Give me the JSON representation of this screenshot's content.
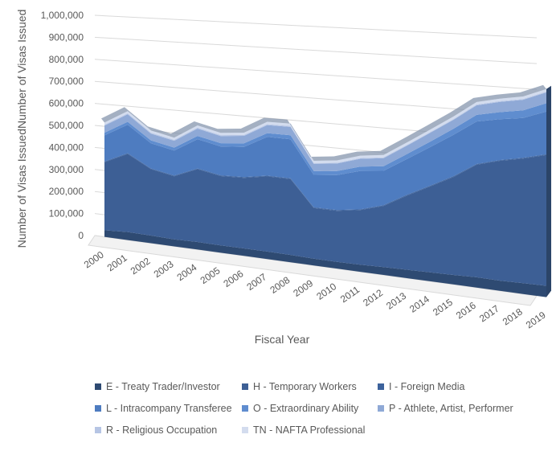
{
  "chart_data": {
    "type": "area",
    "stacked": true,
    "three_d": true,
    "title": "",
    "xlabel": "Fiscal Year",
    "ylabel": "Number of Visas IssuedNumber of Visas Issued",
    "ylim": [
      0,
      1000000
    ],
    "yticks": [
      "0",
      "100,000",
      "200,000",
      "300,000",
      "400,000",
      "500,000",
      "600,000",
      "700,000",
      "800,000",
      "900,000",
      "1,000,000"
    ],
    "categories": [
      "2000",
      "2001",
      "2002",
      "2003",
      "2004",
      "2005",
      "2006",
      "2007",
      "2008",
      "2009",
      "2010",
      "2011",
      "2012",
      "2013",
      "2014",
      "2015",
      "2016",
      "2017",
      "2018",
      "2019"
    ],
    "grid": true,
    "legend_position": "bottom",
    "series": [
      {
        "name": "E - Treaty Trader/Investor",
        "color": "#2e4a72",
        "values": [
          30000,
          36000,
          34000,
          31000,
          33000,
          32000,
          32000,
          32000,
          31000,
          28000,
          28000,
          29000,
          32000,
          34000,
          36000,
          38000,
          41000,
          40000,
          42000,
          44000
        ]
      },
      {
        "name": "H - Temporary Workers",
        "color": "#3d5f95",
        "values": [
          308000,
          350000,
          295000,
          278000,
          318000,
          300000,
          303000,
          320000,
          320000,
          212000,
          212000,
          225000,
          250000,
          300000,
          345000,
          390000,
          445000,
          470000,
          485000,
          505000
        ]
      },
      {
        "name": "I - Foreign Media",
        "color": "#3c629c",
        "values": [
          3000,
          3000,
          3000,
          3000,
          3000,
          3000,
          3000,
          3000,
          3000,
          3000,
          3000,
          3000,
          3000,
          3000,
          3000,
          3000,
          3000,
          3000,
          3000,
          3000
        ]
      },
      {
        "name": "L - Intracompany Transferee",
        "color": "#4e7cc0",
        "values": [
          118000,
          128000,
          112000,
          110000,
          128000,
          125000,
          130000,
          165000,
          165000,
          136000,
          145000,
          158000,
          140000,
          145000,
          155000,
          165000,
          168000,
          160000,
          155000,
          165000
        ]
      },
      {
        "name": "O - Extraordinary Ability",
        "color": "#5f8dcf",
        "values": [
          12000,
          13000,
          13000,
          13000,
          14000,
          14000,
          15000,
          16000,
          17000,
          16000,
          17000,
          18000,
          19000,
          20000,
          22000,
          24000,
          26000,
          28000,
          30000,
          32000
        ]
      },
      {
        "name": "P - Athlete, Artist, Performer",
        "color": "#8fa9d6",
        "values": [
          32000,
          34000,
          30000,
          30000,
          32000,
          31000,
          32000,
          34000,
          35000,
          30000,
          31000,
          32000,
          33000,
          34000,
          35000,
          36000,
          38000,
          40000,
          41000,
          42000
        ]
      },
      {
        "name": "R - Religious Occupation",
        "color": "#b6c5e4",
        "values": [
          4000,
          4000,
          4000,
          4000,
          4000,
          4000,
          4000,
          4000,
          4000,
          3000,
          3000,
          3000,
          3000,
          3000,
          3000,
          3000,
          3000,
          3000,
          3000,
          3000
        ]
      },
      {
        "name": "TN - NAFTA Professional",
        "color": "#d3dcee",
        "values": [
          10000,
          10000,
          10000,
          10000,
          10000,
          10000,
          10000,
          10000,
          10000,
          10000,
          10000,
          10000,
          10000,
          10000,
          10000,
          10000,
          10000,
          10000,
          10000,
          10000
        ]
      }
    ]
  }
}
